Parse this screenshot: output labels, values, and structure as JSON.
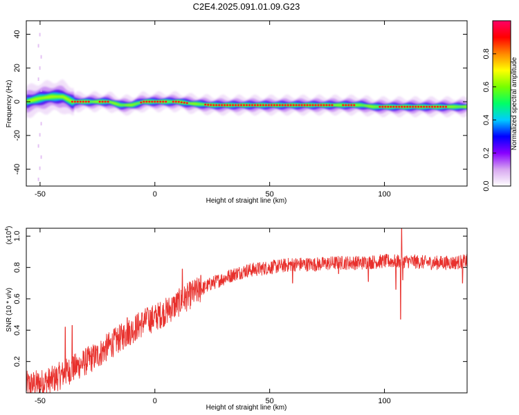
{
  "figure": {
    "title": "C2E4.2025.091.01.09.G23"
  },
  "chart_data": [
    {
      "type": "heatmap",
      "xlabel": "Height of straight line (km)",
      "ylabel": "Frequency (Hz)",
      "xlim": [
        -56,
        136
      ],
      "ylim": [
        -50,
        48
      ],
      "xticks": [
        -50,
        0,
        50,
        100
      ],
      "yticks": [
        -40,
        -20,
        0,
        20,
        40
      ],
      "colorbar": {
        "label": "Normalized spectral amplitude",
        "range": [
          0,
          1
        ],
        "ticks": [
          0.0,
          0.2,
          0.4,
          0.6,
          0.8
        ],
        "colormap": [
          "#ffffff",
          "#d8a8f0",
          "#8800ff",
          "#0000ff",
          "#00ccff",
          "#00ff66",
          "#77ff00",
          "#ffff00",
          "#ff8800",
          "#ff0000",
          "#ff0066"
        ]
      },
      "ridge": [
        {
          "x": -56,
          "f": 0
        },
        {
          "x": -50,
          "f": 2
        },
        {
          "x": -45,
          "f": 3
        },
        {
          "x": -40,
          "f": 3
        },
        {
          "x": -36,
          "f": 0
        },
        {
          "x": -30,
          "f": 0
        },
        {
          "x": -20,
          "f": 0
        },
        {
          "x": -15,
          "f": -2
        },
        {
          "x": -10,
          "f": -2
        },
        {
          "x": -5,
          "f": 0
        },
        {
          "x": 10,
          "f": 0
        },
        {
          "x": 15,
          "f": -1
        },
        {
          "x": 25,
          "f": -2
        },
        {
          "x": 90,
          "f": -2
        },
        {
          "x": 95,
          "f": -3
        },
        {
          "x": 136,
          "f": -3
        }
      ]
    },
    {
      "type": "line",
      "xlabel": "Height of straight line (km)",
      "ylabel": "SNR (10 * v/v)",
      "yscale_label": "(x10",
      "yscale_exp": "4",
      "yscale_close": ")",
      "xlim": [
        -56,
        136
      ],
      "ylim": [
        0.0,
        1.05
      ],
      "xticks": [
        -50,
        0,
        50,
        100
      ],
      "yticks": [
        0.2,
        0.4,
        0.6,
        0.8,
        1.0
      ],
      "color": "#e8302c",
      "trend": [
        [
          -56,
          0.05
        ],
        [
          -50,
          0.06
        ],
        [
          -45,
          0.08
        ],
        [
          -40,
          0.12
        ],
        [
          -35,
          0.16
        ],
        [
          -30,
          0.2
        ],
        [
          -25,
          0.24
        ],
        [
          -20,
          0.3
        ],
        [
          -15,
          0.35
        ],
        [
          -10,
          0.4
        ],
        [
          -5,
          0.45
        ],
        [
          0,
          0.48
        ],
        [
          5,
          0.52
        ],
        [
          10,
          0.57
        ],
        [
          15,
          0.62
        ],
        [
          20,
          0.66
        ],
        [
          25,
          0.7
        ],
        [
          30,
          0.73
        ],
        [
          35,
          0.76
        ],
        [
          40,
          0.78
        ],
        [
          45,
          0.79
        ],
        [
          50,
          0.8
        ],
        [
          55,
          0.81
        ],
        [
          60,
          0.82
        ],
        [
          70,
          0.82
        ],
        [
          80,
          0.83
        ],
        [
          90,
          0.83
        ],
        [
          100,
          0.84
        ],
        [
          110,
          0.84
        ],
        [
          120,
          0.83
        ],
        [
          130,
          0.83
        ],
        [
          136,
          0.84
        ]
      ],
      "features": [
        [
          -39,
          0.42
        ],
        [
          -36,
          0.43
        ],
        [
          -12,
          0.48
        ],
        [
          -3,
          0.53
        ],
        [
          2,
          0.55
        ],
        [
          5,
          0.55
        ],
        [
          12,
          0.79
        ],
        [
          20,
          0.75
        ],
        [
          60,
          0.7
        ],
        [
          80,
          0.76
        ],
        [
          93,
          0.71
        ],
        [
          105,
          0.66
        ],
        [
          106.5,
          0.85
        ],
        [
          107,
          0.47
        ],
        [
          107.5,
          1.05
        ],
        [
          108,
          0.72
        ],
        [
          134,
          0.7
        ]
      ]
    }
  ]
}
